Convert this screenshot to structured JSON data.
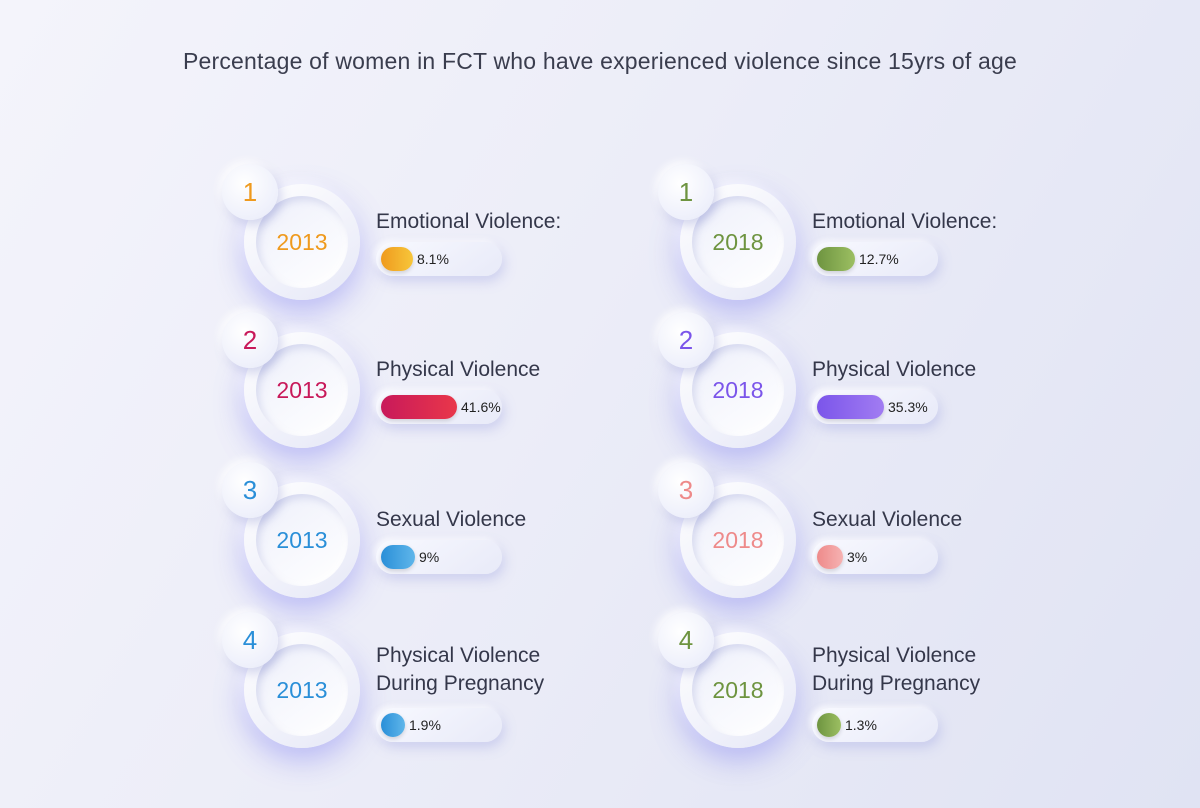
{
  "title": "Percentage of women in FCT who have experienced violence since 15yrs of age",
  "chart_data": {
    "type": "bar",
    "title": "Percentage of women in FCT who have experienced violence since 15yrs of age",
    "unit": "%",
    "series": [
      {
        "name": "2013",
        "items": [
          {
            "index": "1",
            "year": "2013",
            "label": "Emotional Violence:",
            "value": 8.1,
            "display": "8.1%",
            "color": "#ef9a1e",
            "color2": "#f7c63a"
          },
          {
            "index": "2",
            "year": "2013",
            "label": "Physical Violence",
            "value": 41.6,
            "display": "41.6%",
            "color": "#c8195a",
            "color2": "#e9374a"
          },
          {
            "index": "3",
            "year": "2013",
            "label": "Sexual Violence",
            "value": 9,
            "display": "9%",
            "color": "#2a8fd8",
            "color2": "#5fb6ea"
          },
          {
            "index": "4",
            "year": "2013",
            "label": "Physical Violence During Pregnancy",
            "value": 1.9,
            "display": "1.9%",
            "color": "#2a8fd8",
            "color2": "#5fb6ea"
          }
        ]
      },
      {
        "name": "2018",
        "items": [
          {
            "index": "1",
            "year": "2018",
            "label": "Emotional Violence:",
            "value": 12.7,
            "display": "12.7%",
            "color": "#6e9440",
            "color2": "#9cbf62"
          },
          {
            "index": "2",
            "year": "2018",
            "label": "Physical Violence",
            "value": 35.3,
            "display": "35.3%",
            "color": "#7b55ea",
            "color2": "#a17cf2"
          },
          {
            "index": "3",
            "year": "2018",
            "label": "Sexual Violence",
            "value": 3,
            "display": "3%",
            "color": "#ee8a8a",
            "color2": "#f6b2b2"
          },
          {
            "index": "4",
            "year": "2018",
            "label": "Physical Violence During Pregnancy",
            "value": 1.3,
            "display": "1.3%",
            "color": "#6e9440",
            "color2": "#9cbf62"
          }
        ]
      }
    ]
  }
}
